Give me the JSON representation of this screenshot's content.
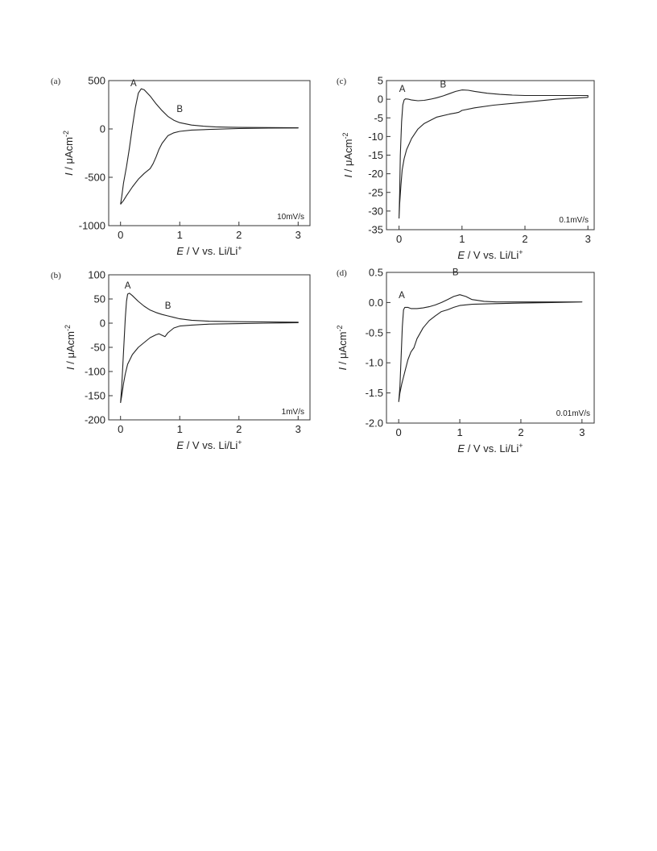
{
  "figure": {
    "xlabel_italic": "E",
    "xlabel_rest": " / V vs. Li/Li",
    "xlabel_sup": "+",
    "ylabel_italic": "I",
    "ylabel_rest": " / μAcm",
    "ylabel_sup": "-2"
  },
  "chart_data": [
    {
      "type": "line",
      "panel": "(a)",
      "scan_rate": "10mV/s",
      "xlim": [
        -0.2,
        3.2
      ],
      "ylim": [
        -1000,
        500
      ],
      "xticks": [
        0,
        1,
        2,
        3
      ],
      "yticks": [
        -1000,
        -500,
        0,
        500
      ],
      "ytick_labels": [
        "-1000",
        "-500",
        "0",
        "500"
      ],
      "annotations": [
        {
          "text": "A",
          "x": 0.22,
          "y": 440
        },
        {
          "text": "B",
          "x": 1.0,
          "y": 175
        }
      ],
      "series": [
        {
          "values": [
            [
              0,
              -780
            ],
            [
              0.02,
              -700
            ],
            [
              0.05,
              -560
            ],
            [
              0.1,
              -390
            ],
            [
              0.15,
              -200
            ],
            [
              0.2,
              20
            ],
            [
              0.25,
              220
            ],
            [
              0.3,
              370
            ],
            [
              0.35,
              415
            ],
            [
              0.4,
              405
            ],
            [
              0.5,
              340
            ],
            [
              0.6,
              260
            ],
            [
              0.7,
              190
            ],
            [
              0.8,
              130
            ],
            [
              0.9,
              90
            ],
            [
              1.0,
              65
            ],
            [
              1.2,
              40
            ],
            [
              1.4,
              28
            ],
            [
              1.6,
              22
            ],
            [
              1.8,
              18
            ],
            [
              2.0,
              16
            ],
            [
              2.5,
              14
            ],
            [
              3.0,
              12
            ],
            [
              3.0,
              10
            ],
            [
              2.5,
              8
            ],
            [
              2.0,
              4
            ],
            [
              1.5,
              -5
            ],
            [
              1.2,
              -12
            ],
            [
              1.0,
              -25
            ],
            [
              0.9,
              -40
            ],
            [
              0.8,
              -70
            ],
            [
              0.7,
              -150
            ],
            [
              0.65,
              -210
            ],
            [
              0.6,
              -290
            ],
            [
              0.55,
              -360
            ],
            [
              0.5,
              -410
            ],
            [
              0.4,
              -460
            ],
            [
              0.3,
              -520
            ],
            [
              0.2,
              -600
            ],
            [
              0.1,
              -690
            ],
            [
              0.05,
              -740
            ],
            [
              0,
              -780
            ]
          ]
        }
      ]
    },
    {
      "type": "line",
      "panel": "(b)",
      "scan_rate": "1mV/s",
      "xlim": [
        -0.2,
        3.2
      ],
      "ylim": [
        -200,
        100
      ],
      "xticks": [
        0,
        1,
        2,
        3
      ],
      "yticks": [
        -200,
        -150,
        -100,
        -50,
        0,
        50,
        100
      ],
      "ytick_labels": [
        "-200",
        "-150",
        "-100",
        "-50",
        "0",
        "50",
        "100"
      ],
      "annotations": [
        {
          "text": "A",
          "x": 0.12,
          "y": 72
        },
        {
          "text": "B",
          "x": 0.8,
          "y": 30
        }
      ],
      "series": [
        {
          "values": [
            [
              0,
              -165
            ],
            [
              0.02,
              -130
            ],
            [
              0.05,
              -60
            ],
            [
              0.08,
              10
            ],
            [
              0.1,
              45
            ],
            [
              0.12,
              60
            ],
            [
              0.15,
              62
            ],
            [
              0.2,
              57
            ],
            [
              0.3,
              45
            ],
            [
              0.4,
              35
            ],
            [
              0.5,
              27
            ],
            [
              0.6,
              22
            ],
            [
              0.7,
              18
            ],
            [
              0.8,
              15
            ],
            [
              0.9,
              12
            ],
            [
              1.0,
              9
            ],
            [
              1.2,
              6
            ],
            [
              1.5,
              4
            ],
            [
              2.0,
              3
            ],
            [
              3.0,
              2
            ],
            [
              3.0,
              1
            ],
            [
              2.5,
              0
            ],
            [
              2.0,
              -1
            ],
            [
              1.5,
              -2
            ],
            [
              1.2,
              -4
            ],
            [
              1.0,
              -6
            ],
            [
              0.9,
              -10
            ],
            [
              0.8,
              -20
            ],
            [
              0.75,
              -28
            ],
            [
              0.7,
              -25
            ],
            [
              0.65,
              -22
            ],
            [
              0.6,
              -24
            ],
            [
              0.5,
              -30
            ],
            [
              0.4,
              -40
            ],
            [
              0.3,
              -50
            ],
            [
              0.2,
              -65
            ],
            [
              0.12,
              -85
            ],
            [
              0.08,
              -105
            ],
            [
              0.05,
              -125
            ],
            [
              0.02,
              -150
            ],
            [
              0,
              -165
            ]
          ]
        }
      ]
    },
    {
      "type": "line",
      "panel": "(c)",
      "scan_rate": "0.1mV/s",
      "xlim": [
        -0.2,
        3.1
      ],
      "ylim": [
        -35,
        5
      ],
      "xticks": [
        0,
        1,
        2,
        3
      ],
      "yticks": [
        -35,
        -30,
        -25,
        -20,
        -15,
        -10,
        -5,
        0,
        5
      ],
      "ytick_labels": [
        "-35",
        "-30",
        "-25",
        "-20",
        "-15",
        "-10",
        "-5",
        "0",
        "5"
      ],
      "annotations": [
        {
          "text": "A",
          "x": 0.05,
          "y": 2
        },
        {
          "text": "B",
          "x": 0.7,
          "y": 3.2
        }
      ],
      "series": [
        {
          "values": [
            [
              0,
              -32
            ],
            [
              0.01,
              -25
            ],
            [
              0.02,
              -15
            ],
            [
              0.04,
              -6
            ],
            [
              0.06,
              -1.5
            ],
            [
              0.08,
              -0.2
            ],
            [
              0.1,
              0.1
            ],
            [
              0.15,
              0
            ],
            [
              0.2,
              -0.2
            ],
            [
              0.3,
              -0.4
            ],
            [
              0.4,
              -0.3
            ],
            [
              0.5,
              0
            ],
            [
              0.6,
              0.4
            ],
            [
              0.7,
              0.9
            ],
            [
              0.8,
              1.5
            ],
            [
              0.9,
              2.1
            ],
            [
              1.0,
              2.5
            ],
            [
              1.1,
              2.4
            ],
            [
              1.2,
              2.1
            ],
            [
              1.4,
              1.6
            ],
            [
              1.6,
              1.3
            ],
            [
              1.8,
              1.1
            ],
            [
              2.0,
              1.0
            ],
            [
              2.5,
              1.0
            ],
            [
              3.0,
              1.0
            ],
            [
              3.0,
              0.5
            ],
            [
              2.5,
              0
            ],
            [
              2.0,
              -0.8
            ],
            [
              1.5,
              -1.6
            ],
            [
              1.2,
              -2.3
            ],
            [
              1.0,
              -3
            ],
            [
              0.95,
              -3.5
            ],
            [
              0.9,
              -3.7
            ],
            [
              0.8,
              -4
            ],
            [
              0.6,
              -4.8
            ],
            [
              0.4,
              -6.5
            ],
            [
              0.3,
              -8
            ],
            [
              0.2,
              -10.5
            ],
            [
              0.12,
              -13.5
            ],
            [
              0.08,
              -16
            ],
            [
              0.05,
              -19
            ],
            [
              0.03,
              -23
            ],
            [
              0.01,
              -28
            ],
            [
              0,
              -32
            ]
          ]
        }
      ]
    },
    {
      "type": "line",
      "panel": "(d)",
      "scan_rate": "0.01mV/s",
      "xlim": [
        -0.2,
        3.2
      ],
      "ylim": [
        -2.0,
        0.5
      ],
      "xticks": [
        0,
        1,
        2,
        3
      ],
      "yticks": [
        -2.0,
        -1.5,
        -1.0,
        -0.5,
        0.0,
        0.5
      ],
      "ytick_labels": [
        "-2.0",
        "-1.5",
        "-1.0",
        "-0.5",
        "0.0",
        "0.5"
      ],
      "annotations": [
        {
          "text": "A",
          "x": 0.05,
          "y": 0.07
        },
        {
          "text": "B",
          "x": 0.93,
          "y": 0.45
        }
      ],
      "series": [
        {
          "values": [
            [
              0,
              -1.65
            ],
            [
              0.02,
              -1.4
            ],
            [
              0.04,
              -0.9
            ],
            [
              0.06,
              -0.4
            ],
            [
              0.08,
              -0.12
            ],
            [
              0.1,
              -0.08
            ],
            [
              0.15,
              -0.08
            ],
            [
              0.2,
              -0.1
            ],
            [
              0.3,
              -0.1
            ],
            [
              0.4,
              -0.09
            ],
            [
              0.5,
              -0.07
            ],
            [
              0.6,
              -0.04
            ],
            [
              0.7,
              0
            ],
            [
              0.8,
              0.05
            ],
            [
              0.9,
              0.1
            ],
            [
              1.0,
              0.13
            ],
            [
              1.1,
              0.1
            ],
            [
              1.2,
              0.05
            ],
            [
              1.4,
              0.02
            ],
            [
              1.6,
              0.01
            ],
            [
              2.0,
              0.01
            ],
            [
              2.5,
              0.01
            ],
            [
              3.0,
              0.01
            ],
            [
              3.0,
              0.01
            ],
            [
              2.5,
              0
            ],
            [
              2.0,
              -0.01
            ],
            [
              1.5,
              -0.02
            ],
            [
              1.2,
              -0.03
            ],
            [
              1.0,
              -0.05
            ],
            [
              0.9,
              -0.08
            ],
            [
              0.8,
              -0.12
            ],
            [
              0.7,
              -0.15
            ],
            [
              0.6,
              -0.22
            ],
            [
              0.5,
              -0.3
            ],
            [
              0.4,
              -0.42
            ],
            [
              0.3,
              -0.6
            ],
            [
              0.25,
              -0.75
            ],
            [
              0.2,
              -0.82
            ],
            [
              0.15,
              -0.95
            ],
            [
              0.1,
              -1.15
            ],
            [
              0.05,
              -1.35
            ],
            [
              0.02,
              -1.5
            ],
            [
              0,
              -1.65
            ]
          ]
        }
      ]
    }
  ]
}
